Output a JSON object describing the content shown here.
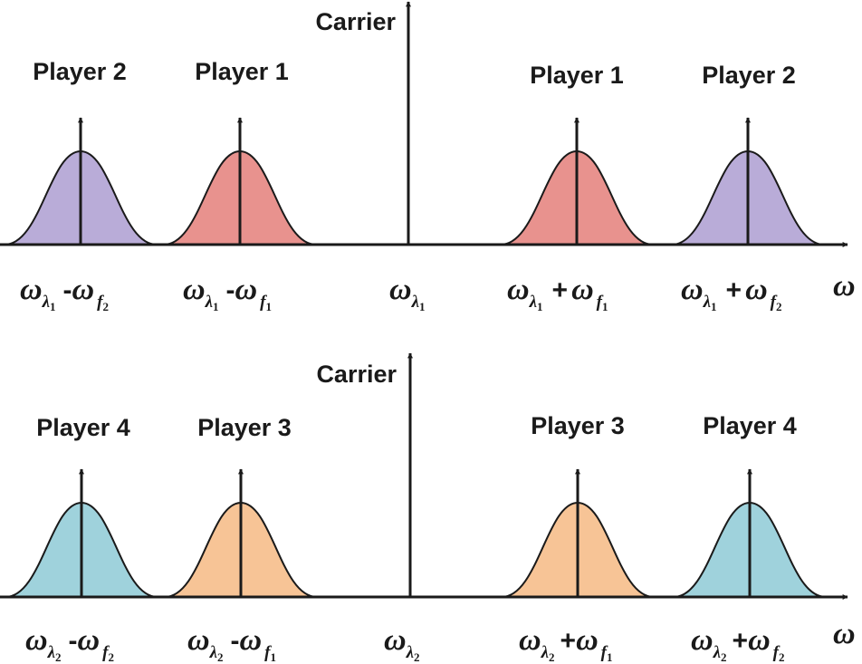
{
  "panels": [
    {
      "carrier_label": "Carrier",
      "axis_label": "ω",
      "peaks": [
        {
          "player": "Player 2",
          "color": "#b9acd8",
          "freq": {
            "base": "ω",
            "base_sub": "λ",
            "base_subsub": "1",
            "op": "-",
            "term": "ω",
            "term_sub": "f",
            "term_subsub": "2"
          }
        },
        {
          "player": "Player 1",
          "color": "#e8928e",
          "freq": {
            "base": "ω",
            "base_sub": "λ",
            "base_subsub": "1",
            "op": "-",
            "term": "ω",
            "term_sub": "f",
            "term_subsub": "1"
          }
        },
        {
          "player": "",
          "color": "",
          "freq": {
            "base": "ω",
            "base_sub": "λ",
            "base_subsub": "1",
            "op": "",
            "term": "",
            "term_sub": "",
            "term_subsub": ""
          }
        },
        {
          "player": "Player 1",
          "color": "#e8928e",
          "freq": {
            "base": "ω",
            "base_sub": "λ",
            "base_subsub": "1",
            "op": "+",
            "term": "ω",
            "term_sub": "f",
            "term_subsub": "1"
          }
        },
        {
          "player": "Player 2",
          "color": "#b9acd8",
          "freq": {
            "base": "ω",
            "base_sub": "λ",
            "base_subsub": "1",
            "op": "+",
            "term": "ω",
            "term_sub": "f",
            "term_subsub": "2"
          }
        }
      ]
    },
    {
      "carrier_label": "Carrier",
      "axis_label": "ω",
      "peaks": [
        {
          "player": "Player 4",
          "color": "#9fd2dc",
          "freq": {
            "base": "ω",
            "base_sub": "λ",
            "base_subsub": "2",
            "op": "-",
            "term": "ω",
            "term_sub": "f",
            "term_subsub": "2"
          }
        },
        {
          "player": "Player 3",
          "color": "#f7c496",
          "freq": {
            "base": "ω",
            "base_sub": "λ",
            "base_subsub": "2",
            "op": "-",
            "term": "ω",
            "term_sub": "f",
            "term_subsub": "1"
          }
        },
        {
          "player": "",
          "color": "",
          "freq": {
            "base": "ω",
            "base_sub": "λ",
            "base_subsub": "2",
            "op": "",
            "term": "",
            "term_sub": "",
            "term_subsub": ""
          }
        },
        {
          "player": "Player 3",
          "color": "#f7c496",
          "freq": {
            "base": "ω",
            "base_sub": "λ",
            "base_subsub": "2",
            "op": "+",
            "term": "ω",
            "term_sub": "f",
            "term_subsub": "1"
          }
        },
        {
          "player": "Player 4",
          "color": "#9fd2dc",
          "freq": {
            "base": "ω",
            "base_sub": "λ",
            "base_subsub": "2",
            "op": "+",
            "term": "ω",
            "term_sub": "f",
            "term_subsub": "2"
          }
        }
      ]
    }
  ]
}
